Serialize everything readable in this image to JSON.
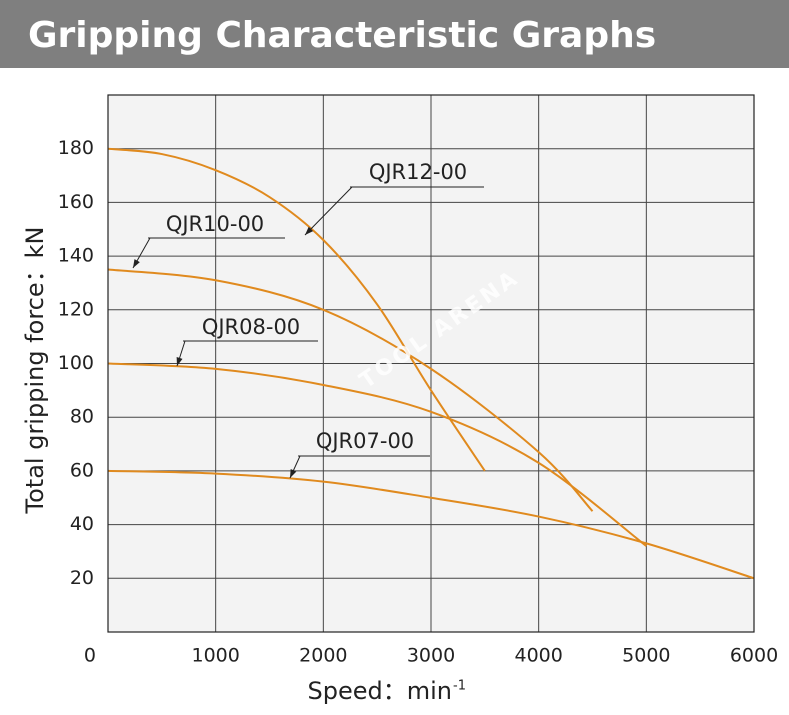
{
  "chart_data": {
    "type": "line",
    "title": "Gripping Characteristic Graphs",
    "x_label": "Speed：min",
    "x_label_superscript": "-1",
    "y_label": "Total gripping force：kN",
    "watermark": "TOOL ARENA",
    "xlim": [
      0,
      6000
    ],
    "xticks": [
      0,
      1000,
      2000,
      3000,
      4000,
      5000,
      6000
    ],
    "ylim": [
      0,
      200
    ],
    "yticks": [
      20,
      40,
      60,
      80,
      100,
      120,
      140,
      160,
      180
    ],
    "grid": true,
    "series": [
      {
        "name": "QJR12-00",
        "color": "#e08a1e",
        "x": [
          0,
          500,
          1000,
          1500,
          2000,
          2500,
          3000,
          3500
        ],
        "values": [
          180,
          178,
          172,
          162,
          146,
          122,
          90,
          60
        ]
      },
      {
        "name": "QJR10-00",
        "color": "#e08a1e",
        "x": [
          0,
          1000,
          2000,
          3000,
          4000,
          4500
        ],
        "values": [
          135,
          131,
          120,
          98,
          67,
          45
        ]
      },
      {
        "name": "QJR08-00",
        "color": "#e08a1e",
        "x": [
          0,
          1000,
          2000,
          3000,
          4000,
          5000
        ],
        "values": [
          100,
          98,
          92,
          82,
          63,
          32
        ]
      },
      {
        "name": "QJR07-00",
        "color": "#e08a1e",
        "x": [
          0,
          1000,
          2000,
          3000,
          4000,
          5000,
          6000
        ],
        "values": [
          60,
          59,
          56,
          50,
          43,
          33,
          20
        ]
      }
    ]
  }
}
